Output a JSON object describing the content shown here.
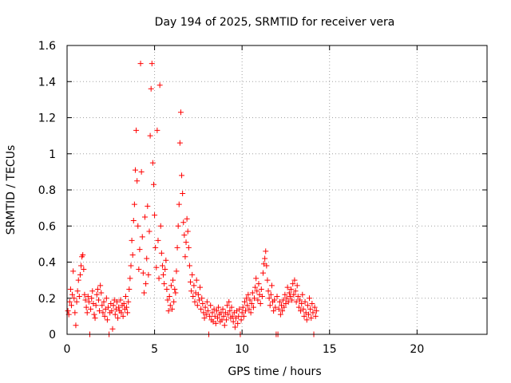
{
  "chart_data": {
    "type": "scatter",
    "title": "Day 194 of 2025, SRMTID for receiver vera",
    "xlabel": "GPS time / hours",
    "ylabel": "SRMTID / TECUs",
    "xlim": [
      0,
      24
    ],
    "ylim": [
      0,
      1.6
    ],
    "xticks": [
      0,
      5,
      10,
      15,
      20
    ],
    "xtick_labels": [
      "0",
      "5",
      "10",
      "15",
      "20"
    ],
    "yticks": [
      0,
      0.2,
      0.4,
      0.6,
      0.8,
      1.0,
      1.2,
      1.4,
      1.6
    ],
    "ytick_labels": [
      "0",
      "0.2",
      "0.4",
      "0.6",
      "0.8",
      "1",
      "1.2",
      "1.4",
      "1.6"
    ],
    "grid": true,
    "marker": "+",
    "color": "#ff0000",
    "series": [
      {
        "name": "vera",
        "points": [
          [
            0.05,
            0.13
          ],
          [
            0.1,
            0.11
          ],
          [
            0.15,
            0.18
          ],
          [
            0.2,
            0.25
          ],
          [
            0.25,
            0.16
          ],
          [
            0.3,
            0.22
          ],
          [
            0.35,
            0.35
          ],
          [
            0.4,
            0.2
          ],
          [
            0.45,
            0.12
          ],
          [
            0.5,
            0.05
          ],
          [
            0.55,
            0.18
          ],
          [
            0.6,
            0.24
          ],
          [
            0.65,
            0.3
          ],
          [
            0.7,
            0.21
          ],
          [
            0.75,
            0.33
          ],
          [
            0.8,
            0.38
          ],
          [
            0.85,
            0.43
          ],
          [
            0.9,
            0.44
          ],
          [
            0.95,
            0.36
          ],
          [
            1.0,
            0.22
          ],
          [
            1.05,
            0.19
          ],
          [
            1.1,
            0.15
          ],
          [
            1.15,
            0.12
          ],
          [
            1.2,
            0.21
          ],
          [
            1.25,
            0.18
          ],
          [
            1.3,
            0.0
          ],
          [
            1.35,
            0.14
          ],
          [
            1.4,
            0.2
          ],
          [
            1.45,
            0.24
          ],
          [
            1.5,
            0.17
          ],
          [
            1.55,
            0.11
          ],
          [
            1.6,
            0.09
          ],
          [
            1.65,
            0.16
          ],
          [
            1.7,
            0.22
          ],
          [
            1.75,
            0.25
          ],
          [
            1.8,
            0.19
          ],
          [
            1.85,
            0.13
          ],
          [
            1.9,
            0.27
          ],
          [
            1.95,
            0.23
          ],
          [
            2.0,
            0.16
          ],
          [
            2.05,
            0.12
          ],
          [
            2.1,
            0.18
          ],
          [
            2.15,
            0.1
          ],
          [
            2.2,
            0.14
          ],
          [
            2.25,
            0.2
          ],
          [
            2.3,
            0.08
          ],
          [
            2.35,
            0.15
          ],
          [
            2.4,
            0.0
          ],
          [
            2.45,
            0.12
          ],
          [
            2.5,
            0.17
          ],
          [
            2.55,
            0.13
          ],
          [
            2.6,
            0.03
          ],
          [
            2.65,
            0.16
          ],
          [
            2.7,
            0.19
          ],
          [
            2.75,
            0.11
          ],
          [
            2.8,
            0.14
          ],
          [
            2.85,
            0.18
          ],
          [
            2.9,
            0.09
          ],
          [
            2.95,
            0.15
          ],
          [
            3.0,
            0.13
          ],
          [
            3.05,
            0.19
          ],
          [
            3.1,
            0.12
          ],
          [
            3.15,
            0.16
          ],
          [
            3.2,
            0.1
          ],
          [
            3.25,
            0.17
          ],
          [
            3.3,
            0.14
          ],
          [
            3.35,
            0.21
          ],
          [
            3.4,
            0.15
          ],
          [
            3.45,
            0.12
          ],
          [
            3.5,
            0.18
          ],
          [
            3.55,
            0.25
          ],
          [
            3.6,
            0.31
          ],
          [
            3.65,
            0.38
          ],
          [
            3.7,
            0.52
          ],
          [
            3.75,
            0.44
          ],
          [
            3.8,
            0.63
          ],
          [
            3.85,
            0.72
          ],
          [
            3.9,
            0.91
          ],
          [
            3.95,
            1.13
          ],
          [
            4.0,
            0.85
          ],
          [
            4.05,
            0.6
          ],
          [
            4.1,
            0.36
          ],
          [
            4.15,
            0.47
          ],
          [
            4.2,
            1.5
          ],
          [
            4.25,
            0.9
          ],
          [
            4.3,
            0.54
          ],
          [
            4.35,
            0.34
          ],
          [
            4.4,
            0.23
          ],
          [
            4.45,
            0.65
          ],
          [
            4.5,
            0.28
          ],
          [
            4.55,
            0.42
          ],
          [
            4.6,
            0.71
          ],
          [
            4.65,
            0.33
          ],
          [
            4.7,
            0.57
          ],
          [
            4.75,
            1.1
          ],
          [
            4.8,
            1.36
          ],
          [
            4.85,
            1.5
          ],
          [
            4.9,
            0.95
          ],
          [
            4.95,
            0.83
          ],
          [
            5.0,
            0.66
          ],
          [
            5.05,
            0.48
          ],
          [
            5.1,
            0.37
          ],
          [
            5.15,
            1.13
          ],
          [
            5.2,
            0.52
          ],
          [
            5.25,
            0.31
          ],
          [
            5.3,
            1.38
          ],
          [
            5.35,
            0.6
          ],
          [
            5.4,
            0.45
          ],
          [
            5.45,
            0.38
          ],
          [
            5.5,
            0.33
          ],
          [
            5.55,
            0.28
          ],
          [
            5.6,
            0.36
          ],
          [
            5.65,
            0.41
          ],
          [
            5.7,
            0.25
          ],
          [
            5.75,
            0.19
          ],
          [
            5.8,
            0.13
          ],
          [
            5.85,
            0.21
          ],
          [
            5.9,
            0.16
          ],
          [
            5.95,
            0.27
          ],
          [
            6.0,
            0.14
          ],
          [
            6.05,
            0.3
          ],
          [
            6.1,
            0.18
          ],
          [
            6.15,
            0.25
          ],
          [
            6.2,
            0.23
          ],
          [
            6.25,
            0.35
          ],
          [
            6.3,
            0.48
          ],
          [
            6.35,
            0.6
          ],
          [
            6.4,
            0.72
          ],
          [
            6.45,
            1.06
          ],
          [
            6.5,
            1.23
          ],
          [
            6.55,
            0.88
          ],
          [
            6.6,
            0.78
          ],
          [
            6.65,
            0.62
          ],
          [
            6.7,
            0.55
          ],
          [
            6.75,
            0.43
          ],
          [
            6.8,
            0.51
          ],
          [
            6.85,
            0.64
          ],
          [
            6.9,
            0.57
          ],
          [
            6.95,
            0.48
          ],
          [
            7.0,
            0.38
          ],
          [
            7.05,
            0.29
          ],
          [
            7.1,
            0.24
          ],
          [
            7.15,
            0.33
          ],
          [
            7.2,
            0.21
          ],
          [
            7.25,
            0.27
          ],
          [
            7.3,
            0.18
          ],
          [
            7.35,
            0.23
          ],
          [
            7.4,
            0.3
          ],
          [
            7.45,
            0.16
          ],
          [
            7.5,
            0.22
          ],
          [
            7.55,
            0.19
          ],
          [
            7.6,
            0.26
          ],
          [
            7.65,
            0.14
          ],
          [
            7.7,
            0.2
          ],
          [
            7.75,
            0.17
          ],
          [
            7.8,
            0.12
          ],
          [
            7.85,
            0.09
          ],
          [
            7.9,
            0.15
          ],
          [
            7.95,
            0.11
          ],
          [
            8.0,
            0.18
          ],
          [
            8.05,
            0.13
          ],
          [
            8.1,
            0.0
          ],
          [
            8.15,
            0.1
          ],
          [
            8.2,
            0.16
          ],
          [
            8.25,
            0.08
          ],
          [
            8.3,
            0.12
          ],
          [
            8.35,
            0.07
          ],
          [
            8.4,
            0.14
          ],
          [
            8.45,
            0.1
          ],
          [
            8.5,
            0.06
          ],
          [
            8.55,
            0.13
          ],
          [
            8.6,
            0.09
          ],
          [
            8.65,
            0.15
          ],
          [
            8.7,
            0.11
          ],
          [
            8.75,
            0.07
          ],
          [
            8.8,
            0.12
          ],
          [
            8.85,
            0.08
          ],
          [
            8.9,
            0.14
          ],
          [
            8.95,
            0.1
          ],
          [
            9.0,
            0.05
          ],
          [
            9.05,
            0.12
          ],
          [
            9.1,
            0.08
          ],
          [
            9.15,
            0.16
          ],
          [
            9.2,
            0.11
          ],
          [
            9.25,
            0.18
          ],
          [
            9.3,
            0.13
          ],
          [
            9.35,
            0.09
          ],
          [
            9.4,
            0.15
          ],
          [
            9.45,
            0.1
          ],
          [
            9.5,
            0.07
          ],
          [
            9.55,
            0.12
          ],
          [
            9.6,
            0.04
          ],
          [
            9.65,
            0.09
          ],
          [
            9.7,
            0.13
          ],
          [
            9.75,
            0.06
          ],
          [
            9.8,
            0.1
          ],
          [
            9.85,
            0.14
          ],
          [
            9.9,
            0.0
          ],
          [
            9.95,
            0.08
          ],
          [
            10.0,
            0.12
          ],
          [
            10.05,
            0.15
          ],
          [
            10.1,
            0.1
          ],
          [
            10.15,
            0.18
          ],
          [
            10.2,
            0.13
          ],
          [
            10.25,
            0.2
          ],
          [
            10.3,
            0.16
          ],
          [
            10.35,
            0.22
          ],
          [
            10.4,
            0.14
          ],
          [
            10.45,
            0.19
          ],
          [
            10.5,
            0.12
          ],
          [
            10.55,
            0.17
          ],
          [
            10.6,
            0.23
          ],
          [
            10.65,
            0.15
          ],
          [
            10.7,
            0.2
          ],
          [
            10.75,
            0.26
          ],
          [
            10.8,
            0.31
          ],
          [
            10.85,
            0.24
          ],
          [
            10.9,
            0.19
          ],
          [
            10.95,
            0.28
          ],
          [
            11.0,
            0.22
          ],
          [
            11.05,
            0.17
          ],
          [
            11.1,
            0.25
          ],
          [
            11.15,
            0.21
          ],
          [
            11.2,
            0.34
          ],
          [
            11.25,
            0.39
          ],
          [
            11.3,
            0.42
          ],
          [
            11.35,
            0.46
          ],
          [
            11.4,
            0.38
          ],
          [
            11.45,
            0.3
          ],
          [
            11.5,
            0.24
          ],
          [
            11.55,
            0.2
          ],
          [
            11.6,
            0.16
          ],
          [
            11.65,
            0.22
          ],
          [
            11.7,
            0.27
          ],
          [
            11.75,
            0.18
          ],
          [
            11.8,
            0.13
          ],
          [
            11.85,
            0.19
          ],
          [
            11.9,
            0.15
          ],
          [
            11.95,
            0.0
          ],
          [
            12.0,
            0.21
          ],
          [
            12.05,
            0.0
          ],
          [
            12.1,
            0.14
          ],
          [
            12.15,
            0.18
          ],
          [
            12.2,
            0.11
          ],
          [
            12.25,
            0.16
          ],
          [
            12.3,
            0.13
          ],
          [
            12.35,
            0.19
          ],
          [
            12.4,
            0.15
          ],
          [
            12.45,
            0.22
          ],
          [
            12.5,
            0.17
          ],
          [
            12.55,
            0.2
          ],
          [
            12.6,
            0.26
          ],
          [
            12.65,
            0.18
          ],
          [
            12.7,
            0.23
          ],
          [
            12.75,
            0.21
          ],
          [
            12.8,
            0.25
          ],
          [
            12.85,
            0.19
          ],
          [
            12.9,
            0.28
          ],
          [
            12.95,
            0.22
          ],
          [
            13.0,
            0.3
          ],
          [
            13.05,
            0.24
          ],
          [
            13.1,
            0.18
          ],
          [
            13.15,
            0.27
          ],
          [
            13.2,
            0.21
          ],
          [
            13.25,
            0.15
          ],
          [
            13.3,
            0.19
          ],
          [
            13.35,
            0.13
          ],
          [
            13.4,
            0.17
          ],
          [
            13.45,
            0.22
          ],
          [
            13.5,
            0.14
          ],
          [
            13.55,
            0.1
          ],
          [
            13.6,
            0.18
          ],
          [
            13.65,
            0.12
          ],
          [
            13.7,
            0.08
          ],
          [
            13.75,
            0.16
          ],
          [
            13.8,
            0.11
          ],
          [
            13.85,
            0.2
          ],
          [
            13.9,
            0.14
          ],
          [
            13.95,
            0.09
          ],
          [
            14.0,
            0.17
          ],
          [
            14.05,
            0.12
          ],
          [
            14.1,
            0.0
          ],
          [
            14.15,
            0.15
          ],
          [
            14.2,
            0.1
          ],
          [
            14.25,
            0.13
          ]
        ]
      }
    ]
  }
}
